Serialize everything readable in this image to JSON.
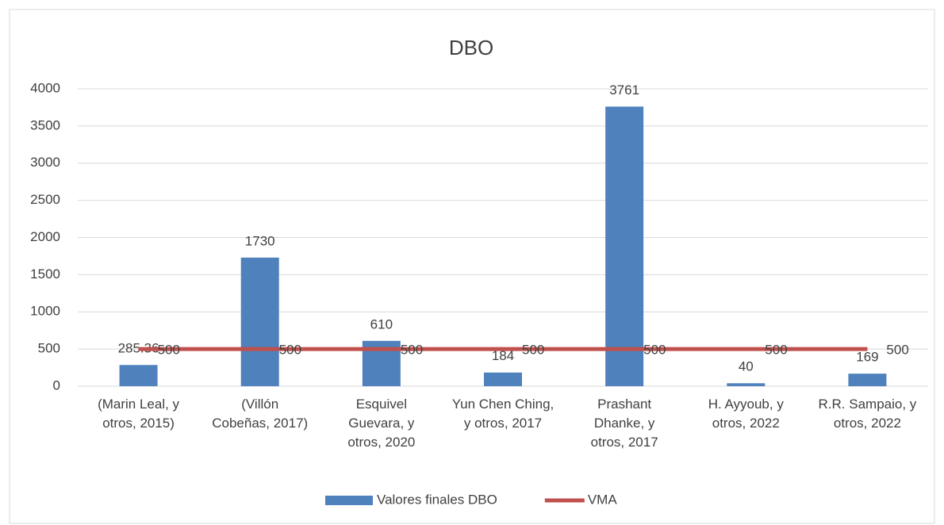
{
  "chart_data": {
    "type": "bar",
    "title": "DBO",
    "categories": [
      "(Marin Leal, y otros, 2015)",
      "(Villón Cobeñas, 2017)",
      "Esquivel Guevara, y otros, 2020",
      "Yun Chen Ching, y otros, 2017",
      "Prashant Dhanke, y otros, 2017",
      "H. Ayyoub, y otros, 2022",
      "R.R. Sampaio, y otros, 2022"
    ],
    "series": [
      {
        "name": "Valores finales DBO",
        "type": "bar",
        "color": "#4f81bd",
        "values": [
          285.36,
          1730,
          610,
          184,
          3761,
          40,
          169
        ]
      },
      {
        "name": "VMA",
        "type": "line",
        "color": "#c0504d",
        "values": [
          500,
          500,
          500,
          500,
          500,
          500,
          500
        ]
      }
    ],
    "ylim": [
      0,
      4000
    ],
    "yticks": [
      0,
      500,
      1000,
      1500,
      2000,
      2500,
      3000,
      3500,
      4000
    ],
    "grid": true,
    "legend": "bottom"
  }
}
